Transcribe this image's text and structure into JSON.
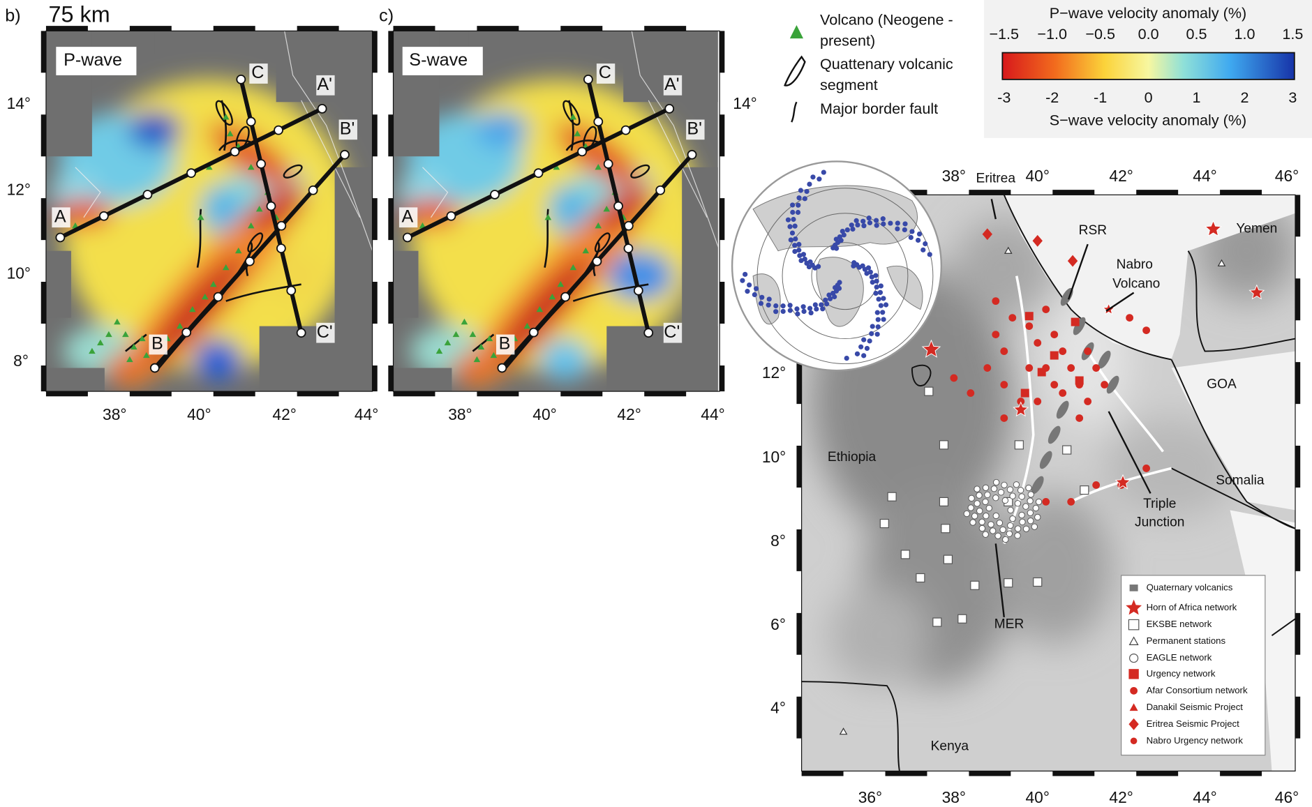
{
  "panel_b": {
    "label": "b)",
    "depth": "75 km",
    "title": "P-wave",
    "y_ticks": [
      "14°",
      "12°",
      "10°",
      "8°"
    ],
    "x_ticks": [
      "38°",
      "40°",
      "42°",
      "44°"
    ],
    "profiles": [
      "A",
      "A'",
      "B",
      "B'",
      "C",
      "C'"
    ]
  },
  "panel_c": {
    "label": "c)",
    "title": "S-wave",
    "y_ticks": [
      "14°"
    ],
    "x_ticks": [
      "38°",
      "40°",
      "42°",
      "44°"
    ],
    "profiles": [
      "A",
      "A'",
      "B",
      "B'",
      "C",
      "C'"
    ]
  },
  "legend": [
    "Volcano (Neogene -",
    "present)",
    "Quattenary volcanic",
    "segment",
    "Major border fault"
  ],
  "colorbar": {
    "top_title": "P−wave velocity anomaly (%)",
    "top_ticks": [
      "−1.5",
      "−1.0",
      "−0.5",
      "0.0",
      "0.5",
      "1.0",
      "1.5"
    ],
    "bottom_ticks": [
      "-3",
      "-2",
      "-1",
      "0",
      "1",
      "2",
      "3"
    ],
    "bottom_title": "S−wave velocity anomaly (%)"
  },
  "map": {
    "top_ticks": [
      "38°",
      "40°",
      "42°",
      "44°",
      "46°"
    ],
    "left_ticks": [
      "12°",
      "10°",
      "8°",
      "6°",
      "4°"
    ],
    "bottom_ticks": [
      "36°",
      "38°",
      "40°",
      "42°",
      "44°",
      "46°"
    ],
    "labels": [
      "Eritrea",
      "RSR",
      "Nabro",
      "Volcano",
      "Yemen",
      "GOA",
      "Ethiopia",
      "Somalia",
      "Triple",
      "Junction",
      "MER",
      "Kenya"
    ],
    "legend": [
      "Quaternary volcanics",
      "Horn of Africa network",
      "EKSBE network",
      "Permanent stations",
      "EAGLE network",
      "Urgency network",
      "Afar Consortium network",
      "Danakil Seismic Project",
      "Eritrea Seismic Project",
      "Nabro Urgency network"
    ]
  }
}
